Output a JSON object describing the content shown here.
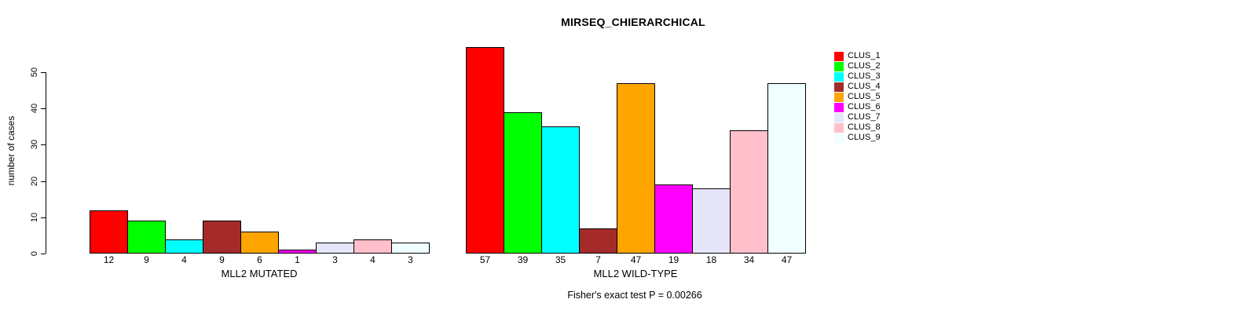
{
  "chart_data": {
    "type": "bar",
    "title": "MIRSEQ_CHIERARCHICAL",
    "ylabel": "number of cases",
    "xlabel": "",
    "ylim": [
      0,
      50
    ],
    "yticks": [
      0,
      10,
      20,
      30,
      40,
      50
    ],
    "grid": false,
    "legend_position": "right",
    "categories": [
      "CLUS_1",
      "CLUS_2",
      "CLUS_3",
      "CLUS_4",
      "CLUS_5",
      "CLUS_6",
      "CLUS_7",
      "CLUS_8",
      "CLUS_9"
    ],
    "colors": [
      "#FF0000",
      "#00FF00",
      "#00FFFF",
      "#A52A2A",
      "#FFA500",
      "#FF00FF",
      "#E6E6FA",
      "#FFC0CB",
      "#F0FFFF"
    ],
    "series": [
      {
        "name": "MLL2 MUTATED",
        "values": [
          12,
          9,
          4,
          9,
          6,
          1,
          3,
          4,
          3
        ]
      },
      {
        "name": "MLL2 WILD-TYPE",
        "values": [
          57,
          39,
          35,
          7,
          47,
          19,
          18,
          34,
          47
        ]
      }
    ],
    "bar_value_labels_shown": true,
    "annotation": "Fisher's exact test P = 0.00266",
    "axis_color": "#000000",
    "background_color": "#ffffff"
  }
}
